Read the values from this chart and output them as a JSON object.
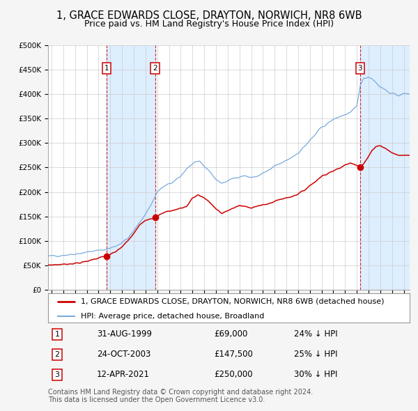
{
  "title": "1, GRACE EDWARDS CLOSE, DRAYTON, NORWICH, NR8 6WB",
  "subtitle": "Price paid vs. HM Land Registry's House Price Index (HPI)",
  "ylim": [
    0,
    500000
  ],
  "yticks": [
    0,
    50000,
    100000,
    150000,
    200000,
    250000,
    300000,
    350000,
    400000,
    450000,
    500000
  ],
  "xlim_start": 1994.7,
  "xlim_end": 2025.5,
  "background_color": "#f5f5f5",
  "plot_bg_color": "#ffffff",
  "grid_color": "#cccccc",
  "sale_color": "#cc0000",
  "hpi_color": "#7aaadd",
  "hpi_fill_color": "#ddeeff",
  "legend_label_sale": "1, GRACE EDWARDS CLOSE, DRAYTON, NORWICH, NR8 6WB (detached house)",
  "legend_label_hpi": "HPI: Average price, detached house, Broadland",
  "transactions": [
    {
      "num": 1,
      "date_label": "31-AUG-1999",
      "date_x": 1999.67,
      "price": 69000,
      "price_label": "£69,000",
      "pct_label": "24% ↓ HPI"
    },
    {
      "num": 2,
      "date_label": "24-OCT-2003",
      "date_x": 2003.82,
      "price": 147500,
      "price_label": "£147,500",
      "pct_label": "25% ↓ HPI"
    },
    {
      "num": 3,
      "date_label": "12-APR-2021",
      "date_x": 2021.28,
      "price": 250000,
      "price_label": "£250,000",
      "pct_label": "30% ↓ HPI"
    }
  ],
  "footnote": "Contains HM Land Registry data © Crown copyright and database right 2024.\nThis data is licensed under the Open Government Licence v3.0.",
  "title_fontsize": 10.5,
  "subtitle_fontsize": 9,
  "tick_fontsize": 7.5,
  "legend_fontsize": 8,
  "table_fontsize": 8.5,
  "footnote_fontsize": 7
}
